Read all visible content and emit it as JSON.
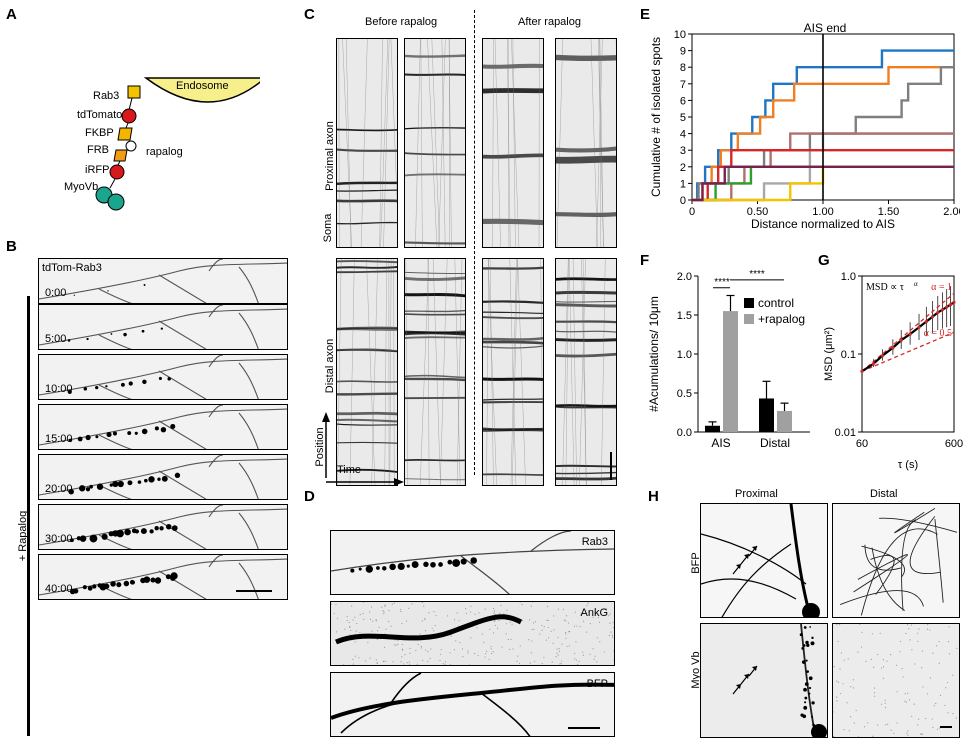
{
  "panels": {
    "A": "A",
    "B": "B",
    "C": "C",
    "D": "D",
    "E": "E",
    "F": "F",
    "G": "G",
    "H": "H"
  },
  "schematic": {
    "endosome": "Endosome",
    "rab3": "Rab3",
    "tdtomato": "tdTomato",
    "fkbp": "FKBP",
    "frb": "FRB",
    "rapalog": "rapalog",
    "irfp": "iRFP",
    "myovb": "MyoVb"
  },
  "timelapse": {
    "channel": "tdTom-Rab3",
    "side_label": "+ Rapalog",
    "times": [
      "0:00",
      "5:00",
      "10:00",
      "15:00",
      "20:00",
      "30:00",
      "40:00"
    ]
  },
  "kymographs": {
    "before": "Before rapalog",
    "after": "After rapalog",
    "proximal": "Proximal axon",
    "soma": "Soma",
    "distal": "Distal axon",
    "position": "Position",
    "time": "Time"
  },
  "stains": {
    "rab3": "Rab3",
    "ankg": "AnkG",
    "bfp": "BFP"
  },
  "h_panel": {
    "proximal": "Proximal",
    "distal": "Distal",
    "bfp": "BFP",
    "myovb": "Myo Vb"
  },
  "colors": {
    "endosome": "#f7ee8c",
    "yellow_tag": "#f5c400",
    "red_tag": "#d7191c",
    "orange_tag": "#f39c12",
    "teal_tag": "#1aa58f",
    "grey_bar": "#a0a0a0"
  },
  "chart_data": [
    {
      "panel": "E",
      "type": "line",
      "annotation": "AIS end",
      "xlabel": "Distance normalized to AIS",
      "ylabel": "Cumulative # of isolated spots",
      "xlim": [
        0,
        2
      ],
      "ylim": [
        0,
        10
      ],
      "xticks": [
        "0",
        "0.50",
        "1.00",
        "1.50",
        "2.00"
      ],
      "yticks": [
        "0",
        "1",
        "2",
        "3",
        "4",
        "5",
        "6",
        "7",
        "8",
        "9",
        "10"
      ],
      "vline_x": 1.0,
      "series": [
        {
          "color": "#1f77c4",
          "steps": [
            [
              0,
              0
            ],
            [
              0.04,
              1
            ],
            [
              0.1,
              2
            ],
            [
              0.2,
              3
            ],
            [
              0.3,
              4
            ],
            [
              0.46,
              5
            ],
            [
              0.56,
              6
            ],
            [
              0.62,
              7
            ],
            [
              0.8,
              8
            ],
            [
              1.45,
              9
            ],
            [
              2.0,
              9
            ]
          ]
        },
        {
          "color": "#f07f24",
          "steps": [
            [
              0,
              0
            ],
            [
              0.08,
              1
            ],
            [
              0.15,
              2
            ],
            [
              0.22,
              3
            ],
            [
              0.35,
              4
            ],
            [
              0.52,
              5
            ],
            [
              0.62,
              6
            ],
            [
              0.78,
              7
            ],
            [
              1.05,
              7
            ],
            [
              1.5,
              8
            ],
            [
              2.0,
              8
            ]
          ]
        },
        {
          "color": "#7f7f7f",
          "steps": [
            [
              0,
              0
            ],
            [
              0.05,
              1
            ],
            [
              0.28,
              2
            ],
            [
              0.55,
              3
            ],
            [
              0.9,
              4
            ],
            [
              1.2,
              4
            ],
            [
              1.25,
              5
            ],
            [
              1.6,
              6
            ],
            [
              1.65,
              7
            ],
            [
              1.9,
              8
            ],
            [
              2.0,
              8
            ]
          ]
        },
        {
          "color": "#a8a8a8",
          "steps": [
            [
              0,
              0
            ],
            [
              0.55,
              1
            ],
            [
              0.9,
              3
            ],
            [
              1.0,
              4
            ],
            [
              2.0,
              4
            ]
          ]
        },
        {
          "color": "#b07070",
          "steps": [
            [
              0,
              0
            ],
            [
              0.3,
              1
            ],
            [
              0.4,
              2
            ],
            [
              0.6,
              3
            ],
            [
              0.75,
              4
            ],
            [
              2.0,
              4
            ]
          ]
        },
        {
          "color": "#d62728",
          "steps": [
            [
              0,
              0
            ],
            [
              0.12,
              1
            ],
            [
              0.2,
              2
            ],
            [
              0.3,
              3
            ],
            [
              2.0,
              3
            ]
          ]
        },
        {
          "color": "#2ca02c",
          "steps": [
            [
              0,
              0
            ],
            [
              0.18,
              1
            ],
            [
              0.45,
              2
            ],
            [
              2.0,
              2
            ]
          ]
        },
        {
          "color": "#f5c400",
          "steps": [
            [
              0,
              0
            ],
            [
              0.75,
              1
            ],
            [
              1.0,
              2
            ],
            [
              2.0,
              2
            ]
          ]
        },
        {
          "color": "#7a1f52",
          "steps": [
            [
              0,
              0
            ],
            [
              0.08,
              1
            ],
            [
              0.25,
              2
            ],
            [
              2.0,
              2
            ]
          ]
        }
      ]
    },
    {
      "panel": "F",
      "type": "bar",
      "ylabel": "#Acumulations/ 10μm",
      "categories": [
        "AIS",
        "Distal"
      ],
      "ylim": [
        0,
        2
      ],
      "yticks": [
        "0.0",
        "0.5",
        "1.0",
        "1.5",
        "2.0"
      ],
      "series": [
        {
          "name": "control",
          "color": "#000000",
          "values": [
            0.08,
            0.43
          ],
          "errors": [
            0.05,
            0.22
          ]
        },
        {
          "name": "+rapalog",
          "color": "#a0a0a0",
          "values": [
            1.55,
            0.27
          ],
          "errors": [
            0.2,
            0.1
          ]
        }
      ],
      "significance": [
        "****",
        "****"
      ]
    },
    {
      "panel": "G",
      "type": "line",
      "xlabel": "τ (s)",
      "ylabel": "MSD (μm²)",
      "annotation": "MSD ∝ τ",
      "annotation_sup": "α",
      "fit_labels": [
        "α = 1",
        "α = 0.5"
      ],
      "xticks": [
        "60",
        "600"
      ],
      "yticks": [
        "0.01",
        "0.1",
        "1.0"
      ],
      "xlim": [
        60,
        600
      ],
      "ylim": [
        0.01,
        1.0
      ],
      "xscale": "log",
      "yscale": "log",
      "data_points": [
        [
          60,
          0.06
        ],
        [
          80,
          0.075
        ],
        [
          100,
          0.095
        ],
        [
          130,
          0.12
        ],
        [
          160,
          0.15
        ],
        [
          200,
          0.18
        ],
        [
          250,
          0.22
        ],
        [
          300,
          0.26
        ],
        [
          350,
          0.3
        ],
        [
          400,
          0.34
        ],
        [
          450,
          0.37
        ],
        [
          500,
          0.4
        ],
        [
          550,
          0.43
        ],
        [
          600,
          0.46
        ]
      ]
    }
  ]
}
